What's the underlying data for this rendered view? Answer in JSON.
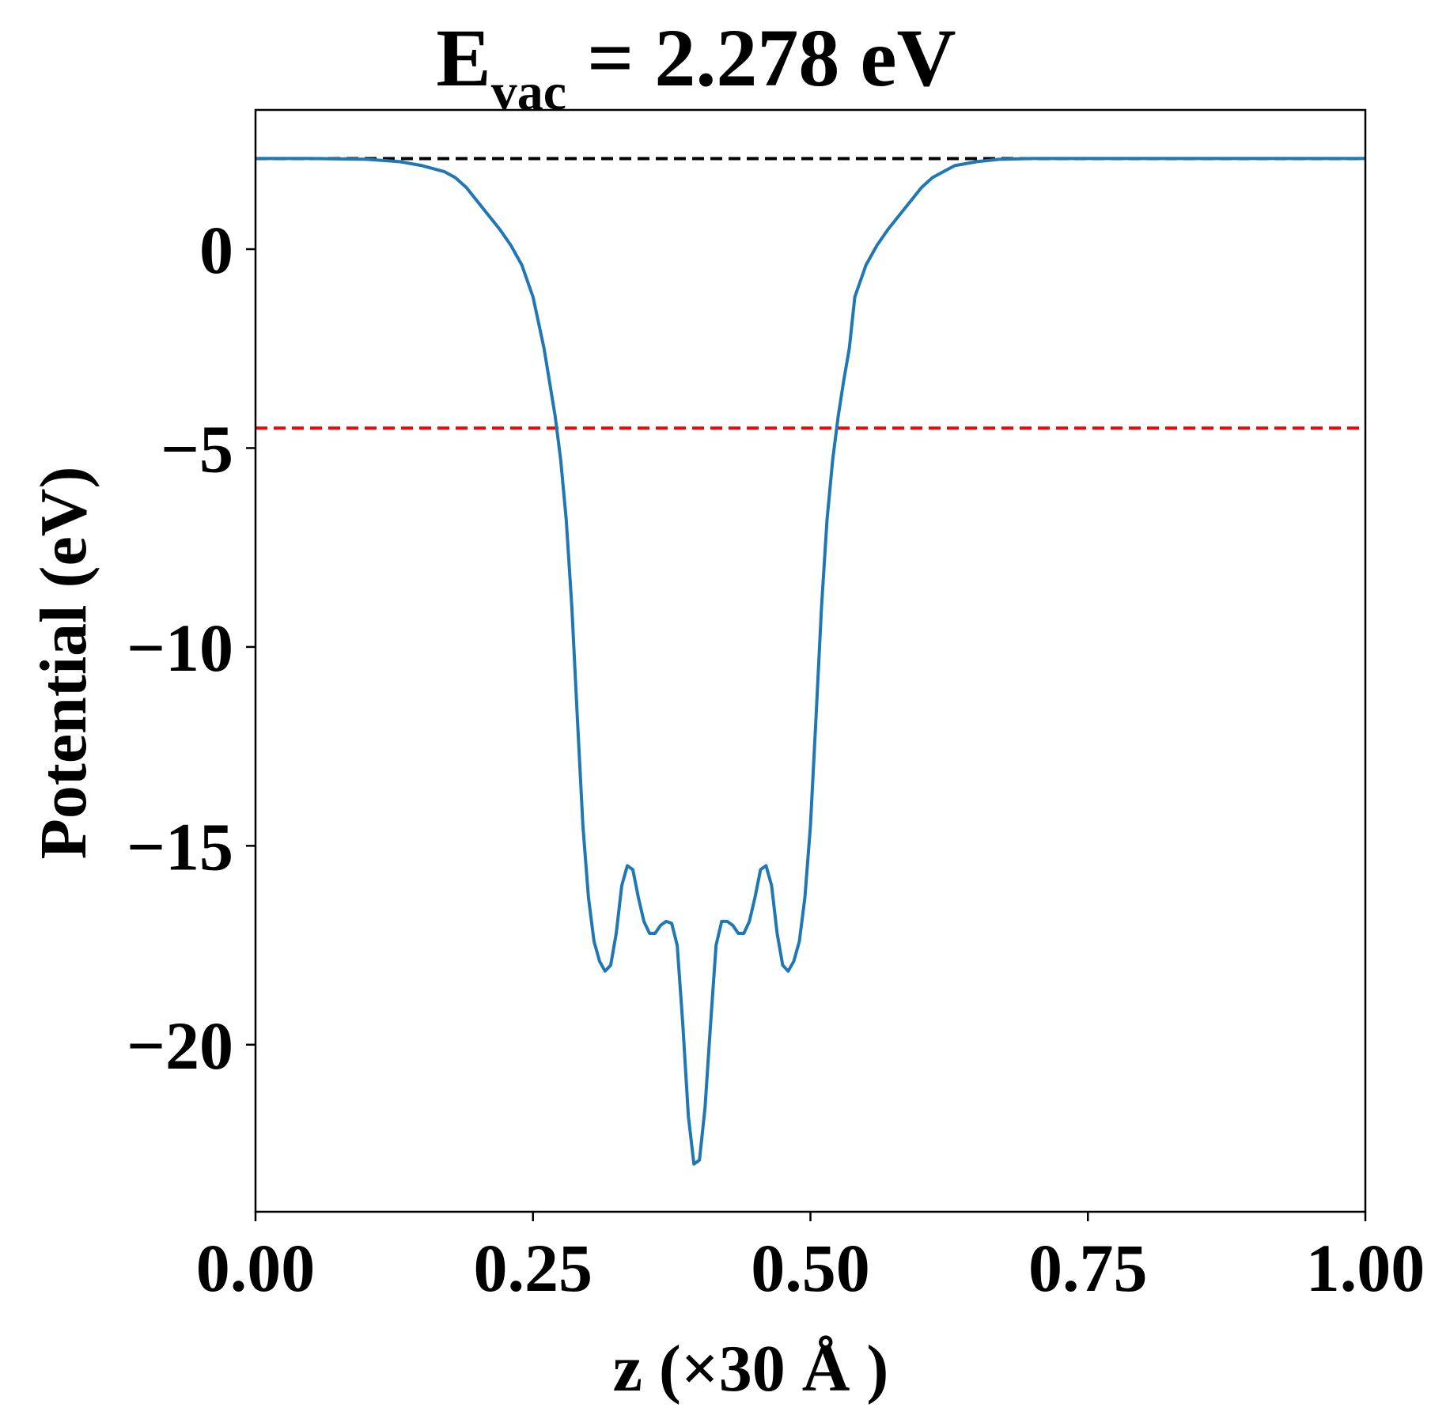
{
  "chart_data": {
    "type": "line",
    "title_main": "E",
    "title_sub": "vac",
    "title_rest": " = 2.278 eV",
    "xlabel": "z (×30 Å )",
    "ylabel": "Potential (eV)",
    "xlim": [
      0.0,
      1.0
    ],
    "ylim": [
      -24.2,
      3.5
    ],
    "xticks": [
      0.0,
      0.25,
      0.5,
      0.75,
      1.0
    ],
    "xtick_labels": [
      "0.00",
      "0.25",
      "0.50",
      "0.75",
      "1.00"
    ],
    "yticks": [
      0,
      -5,
      -10,
      -15,
      -20
    ],
    "ytick_labels": [
      "0",
      "−5",
      "−10",
      "−15",
      "−20"
    ],
    "grid": false,
    "reference_lines": [
      {
        "y": 2.278,
        "color": "#000000",
        "style": "dashed"
      },
      {
        "y": -4.5,
        "color": "#ff0000",
        "style": "dashed"
      }
    ],
    "series": [
      {
        "color": "#1f77b4",
        "x": [
          0.0,
          0.05,
          0.1,
          0.13,
          0.15,
          0.17,
          0.18,
          0.19,
          0.2,
          0.21,
          0.22,
          0.23,
          0.24,
          0.25,
          0.26,
          0.27,
          0.275,
          0.28,
          0.285,
          0.29,
          0.295,
          0.3,
          0.305,
          0.31,
          0.315,
          0.32,
          0.325,
          0.33,
          0.335,
          0.34,
          0.345,
          0.35,
          0.355,
          0.36,
          0.365,
          0.37,
          0.375,
          0.38,
          0.385,
          0.39,
          0.395,
          0.4,
          0.405,
          0.41,
          0.415,
          0.42,
          0.425,
          0.43,
          0.435,
          0.44,
          0.445,
          0.45,
          0.455,
          0.46,
          0.465,
          0.47,
          0.475,
          0.48,
          0.485,
          0.49,
          0.495,
          0.5,
          0.505,
          0.51,
          0.515,
          0.52,
          0.525,
          0.53,
          0.535,
          0.54,
          0.55,
          0.56,
          0.57,
          0.58,
          0.59,
          0.6,
          0.61,
          0.62,
          0.63,
          0.65,
          0.67,
          0.7,
          0.8,
          0.9,
          1.0
        ],
        "y": [
          2.28,
          2.28,
          2.26,
          2.2,
          2.1,
          1.95,
          1.8,
          1.55,
          1.2,
          0.85,
          0.5,
          0.1,
          -0.4,
          -1.2,
          -2.5,
          -4.2,
          -5.3,
          -6.8,
          -9.0,
          -11.8,
          -14.5,
          -16.3,
          -17.4,
          -17.9,
          -18.15,
          -18.0,
          -17.2,
          -16.0,
          -15.5,
          -15.6,
          -16.3,
          -16.9,
          -17.2,
          -17.2,
          -17.0,
          -16.9,
          -16.95,
          -17.5,
          -19.5,
          -21.8,
          -23.0,
          -22.9,
          -21.6,
          -19.5,
          -17.5,
          -16.9,
          -16.9,
          -17.0,
          -17.2,
          -17.2,
          -16.9,
          -16.3,
          -15.6,
          -15.5,
          -16.0,
          -17.2,
          -18.0,
          -18.15,
          -17.9,
          -17.4,
          -16.3,
          -14.5,
          -11.8,
          -9.0,
          -6.8,
          -5.3,
          -4.2,
          -3.3,
          -2.5,
          -1.2,
          -0.4,
          0.1,
          0.5,
          0.85,
          1.2,
          1.55,
          1.8,
          1.95,
          2.1,
          2.2,
          2.26,
          2.28,
          2.28,
          2.28,
          2.28
        ]
      }
    ]
  }
}
